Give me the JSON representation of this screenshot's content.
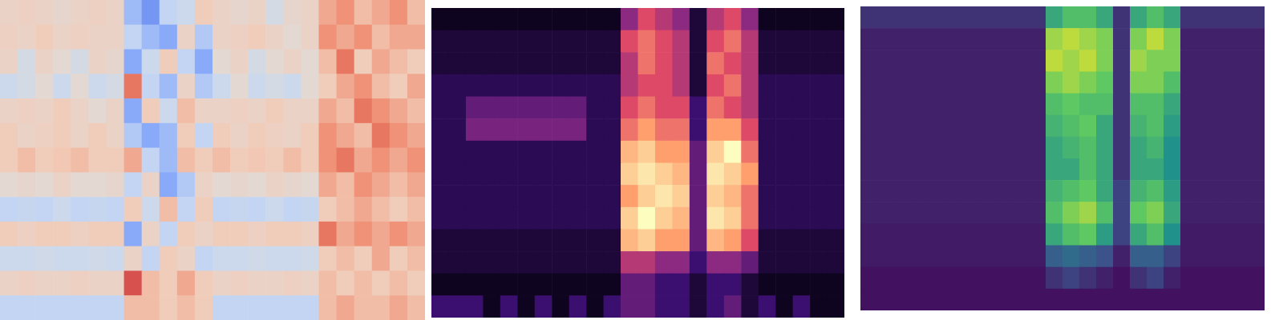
{
  "chart_data": [
    {
      "type": "heatmap",
      "color": "coolwarm",
      "tick_labels": false,
      "zlim": [
        -1,
        1
      ],
      "cells": [
        [
          0.2,
          0.25,
          0.2,
          0.15,
          0.2,
          0.25,
          0.2,
          -0.5,
          -0.7,
          -0.3,
          -0.2,
          0.3,
          0.2,
          0.15,
          0.2,
          -0.1,
          0.15,
          0.2,
          0.5,
          0.6,
          0.4,
          0.5,
          0.6,
          0.4
        ],
        [
          0.25,
          0.2,
          0.3,
          0.2,
          0.25,
          0.2,
          0.2,
          -0.3,
          -0.5,
          -0.6,
          0.2,
          -0.4,
          0.2,
          0.25,
          0.3,
          0.2,
          0.1,
          0.2,
          0.6,
          0.5,
          0.6,
          0.4,
          0.5,
          0.5
        ],
        [
          0.2,
          -0.1,
          0.2,
          0.1,
          -0.1,
          0.2,
          0.15,
          -0.6,
          -0.2,
          0.3,
          -0.3,
          -0.6,
          0.1,
          0.2,
          -0.1,
          0.1,
          0.2,
          0.1,
          0.4,
          0.7,
          0.3,
          0.5,
          0.4,
          0.3
        ],
        [
          -0.2,
          -0.1,
          0.1,
          -0.2,
          0.1,
          -0.2,
          -0.1,
          0.7,
          -0.3,
          -0.5,
          0.2,
          -0.4,
          -0.2,
          0.1,
          -0.2,
          -0.1,
          -0.2,
          0.1,
          0.3,
          0.5,
          0.6,
          0.4,
          0.3,
          0.5
        ],
        [
          0.2,
          0.25,
          0.2,
          0.3,
          0.2,
          0.1,
          0.2,
          -0.6,
          0.3,
          -0.2,
          0.4,
          0.2,
          0.2,
          0.25,
          0.2,
          0.3,
          0.2,
          0.2,
          0.5,
          0.4,
          0.7,
          0.6,
          0.5,
          0.4
        ],
        [
          0.3,
          0.2,
          0.25,
          0.3,
          0.2,
          0.3,
          0.2,
          -0.4,
          -0.6,
          -0.5,
          0.3,
          -0.3,
          0.3,
          0.2,
          0.3,
          0.25,
          0.2,
          0.3,
          0.6,
          0.5,
          0.4,
          0.7,
          0.6,
          0.5
        ],
        [
          0.3,
          0.4,
          0.3,
          0.35,
          0.4,
          0.3,
          0.3,
          0.5,
          -0.3,
          -0.5,
          0.4,
          0.3,
          0.4,
          0.3,
          0.35,
          0.3,
          0.4,
          0.3,
          0.6,
          0.7,
          0.5,
          0.6,
          0.5,
          0.6
        ],
        [
          0.1,
          0.15,
          0.1,
          0.2,
          0.1,
          0.1,
          0.15,
          -0.3,
          0.2,
          -0.6,
          -0.4,
          0.2,
          0.1,
          0.15,
          0.1,
          0.2,
          0.15,
          0.1,
          0.5,
          0.4,
          0.6,
          0.5,
          0.4,
          0.5
        ],
        [
          -0.3,
          -0.25,
          -0.3,
          -0.2,
          -0.3,
          -0.25,
          -0.3,
          0.3,
          -0.2,
          0.4,
          -0.3,
          0.3,
          -0.3,
          -0.25,
          -0.3,
          -0.2,
          -0.3,
          -0.25,
          0.3,
          0.4,
          0.5,
          0.4,
          0.3,
          0.4
        ],
        [
          0.3,
          0.25,
          0.3,
          0.3,
          0.25,
          0.3,
          0.3,
          -0.6,
          0.2,
          -0.3,
          0.3,
          0.2,
          0.3,
          0.3,
          0.25,
          0.3,
          0.3,
          0.25,
          0.7,
          0.5,
          0.6,
          0.5,
          0.6,
          0.5
        ],
        [
          -0.2,
          -0.2,
          -0.15,
          -0.2,
          -0.2,
          -0.15,
          -0.2,
          0.2,
          -0.3,
          0.3,
          0.2,
          -0.3,
          -0.2,
          -0.2,
          -0.15,
          -0.2,
          -0.2,
          -0.15,
          0.3,
          0.4,
          0.3,
          0.5,
          0.3,
          0.4
        ],
        [
          0.2,
          0.25,
          0.2,
          0.2,
          0.25,
          0.2,
          0.2,
          0.8,
          0.4,
          0.3,
          0.5,
          0.3,
          0.2,
          0.25,
          0.2,
          0.2,
          0.25,
          0.2,
          0.4,
          0.3,
          0.4,
          0.3,
          0.4,
          0.3
        ],
        [
          -0.3,
          -0.3,
          -0.3,
          -0.3,
          -0.3,
          -0.3,
          -0.3,
          0.4,
          0.4,
          0.3,
          0.4,
          0.3,
          -0.3,
          -0.3,
          -0.3,
          -0.3,
          -0.3,
          -0.3,
          0.4,
          0.5,
          0.4,
          0.4,
          0.5,
          0.4
        ]
      ]
    },
    {
      "type": "heatmap",
      "color": "magma",
      "tick_labels": false,
      "zlim": [
        0,
        1
      ],
      "cells": [
        [
          0.05,
          0.05,
          0.05,
          0.05,
          0.05,
          0.05,
          0.05,
          0.05,
          0.05,
          0.05,
          0.05,
          0.4,
          0.6,
          0.5,
          0.4,
          0.1,
          0.5,
          0.6,
          0.4,
          0.05,
          0.05,
          0.05,
          0.05,
          0.05
        ],
        [
          0.1,
          0.1,
          0.1,
          0.1,
          0.1,
          0.1,
          0.1,
          0.1,
          0.1,
          0.1,
          0.1,
          0.6,
          0.7,
          0.6,
          0.5,
          0.1,
          0.6,
          0.7,
          0.5,
          0.1,
          0.1,
          0.1,
          0.1,
          0.1
        ],
        [
          0.1,
          0.1,
          0.1,
          0.1,
          0.1,
          0.1,
          0.1,
          0.1,
          0.1,
          0.1,
          0.1,
          0.5,
          0.7,
          0.6,
          0.5,
          0.1,
          0.7,
          0.6,
          0.5,
          0.1,
          0.1,
          0.1,
          0.1,
          0.1
        ],
        [
          0.15,
          0.15,
          0.15,
          0.15,
          0.15,
          0.15,
          0.15,
          0.15,
          0.15,
          0.15,
          0.15,
          0.5,
          0.6,
          0.6,
          0.5,
          0.1,
          0.6,
          0.7,
          0.5,
          0.15,
          0.15,
          0.15,
          0.15,
          0.15
        ],
        [
          0.15,
          0.15,
          0.3,
          0.3,
          0.3,
          0.3,
          0.3,
          0.3,
          0.3,
          0.15,
          0.15,
          0.6,
          0.7,
          0.6,
          0.6,
          0.2,
          0.7,
          0.6,
          0.5,
          0.15,
          0.15,
          0.15,
          0.15,
          0.15
        ],
        [
          0.15,
          0.15,
          0.35,
          0.35,
          0.35,
          0.35,
          0.35,
          0.35,
          0.35,
          0.15,
          0.15,
          0.7,
          0.8,
          0.7,
          0.7,
          0.2,
          0.8,
          0.8,
          0.6,
          0.15,
          0.15,
          0.15,
          0.15,
          0.15
        ],
        [
          0.15,
          0.15,
          0.15,
          0.15,
          0.15,
          0.15,
          0.15,
          0.15,
          0.15,
          0.15,
          0.15,
          0.85,
          0.9,
          0.8,
          0.8,
          0.3,
          0.9,
          1.0,
          0.7,
          0.15,
          0.15,
          0.15,
          0.15,
          0.15
        ],
        [
          0.15,
          0.15,
          0.15,
          0.15,
          0.15,
          0.15,
          0.15,
          0.15,
          0.15,
          0.15,
          0.15,
          0.9,
          0.95,
          0.9,
          0.85,
          0.3,
          0.95,
          0.9,
          0.8,
          0.15,
          0.15,
          0.15,
          0.15,
          0.15
        ],
        [
          0.15,
          0.15,
          0.15,
          0.15,
          0.15,
          0.15,
          0.15,
          0.15,
          0.15,
          0.15,
          0.15,
          0.8,
          0.9,
          0.95,
          0.9,
          0.3,
          0.9,
          0.85,
          0.7,
          0.15,
          0.15,
          0.15,
          0.15,
          0.15
        ],
        [
          0.15,
          0.15,
          0.15,
          0.15,
          0.15,
          0.15,
          0.15,
          0.15,
          0.15,
          0.15,
          0.15,
          0.9,
          1.0,
          0.9,
          0.85,
          0.3,
          0.95,
          0.9,
          0.7,
          0.15,
          0.15,
          0.15,
          0.15,
          0.15
        ],
        [
          0.1,
          0.1,
          0.1,
          0.1,
          0.1,
          0.1,
          0.1,
          0.1,
          0.1,
          0.1,
          0.1,
          0.85,
          0.9,
          0.8,
          0.8,
          0.3,
          0.85,
          0.8,
          0.6,
          0.1,
          0.1,
          0.1,
          0.1,
          0.1
        ],
        [
          0.1,
          0.1,
          0.1,
          0.1,
          0.1,
          0.1,
          0.1,
          0.1,
          0.1,
          0.1,
          0.1,
          0.5,
          0.5,
          0.4,
          0.4,
          0.2,
          0.4,
          0.4,
          0.3,
          0.1,
          0.1,
          0.1,
          0.1,
          0.1
        ],
        [
          0.05,
          0.05,
          0.05,
          0.05,
          0.05,
          0.05,
          0.05,
          0.05,
          0.05,
          0.05,
          0.05,
          0.3,
          0.3,
          0.2,
          0.2,
          0.1,
          0.2,
          0.2,
          0.1,
          0.05,
          0.05,
          0.05,
          0.05,
          0.05
        ],
        [
          0.2,
          0.2,
          0.2,
          0.05,
          0.2,
          0.05,
          0.2,
          0.05,
          0.2,
          0.05,
          0.2,
          0.3,
          0.3,
          0.2,
          0.2,
          0.1,
          0.2,
          0.3,
          0.1,
          0.2,
          0.05,
          0.2,
          0.05,
          0.05
        ]
      ]
    },
    {
      "type": "heatmap",
      "color": "viridis",
      "tick_labels": false,
      "zlim": [
        0,
        1
      ],
      "cells": [
        [
          0.15,
          0.15,
          0.15,
          0.15,
          0.15,
          0.15,
          0.15,
          0.15,
          0.15,
          0.15,
          0.15,
          0.6,
          0.7,
          0.7,
          0.6,
          0.15,
          0.6,
          0.7,
          0.6,
          0.15,
          0.15,
          0.15,
          0.15,
          0.15
        ],
        [
          0.1,
          0.1,
          0.1,
          0.1,
          0.1,
          0.1,
          0.1,
          0.1,
          0.1,
          0.1,
          0.1,
          0.85,
          0.9,
          0.85,
          0.8,
          0.15,
          0.8,
          0.9,
          0.8,
          0.1,
          0.1,
          0.1,
          0.1,
          0.1
        ],
        [
          0.1,
          0.1,
          0.1,
          0.1,
          0.1,
          0.1,
          0.1,
          0.1,
          0.1,
          0.1,
          0.1,
          0.9,
          0.85,
          0.9,
          0.8,
          0.15,
          0.85,
          0.8,
          0.8,
          0.1,
          0.1,
          0.1,
          0.1,
          0.1
        ],
        [
          0.1,
          0.1,
          0.1,
          0.1,
          0.1,
          0.1,
          0.1,
          0.1,
          0.1,
          0.1,
          0.1,
          0.8,
          0.85,
          0.8,
          0.75,
          0.15,
          0.8,
          0.8,
          0.7,
          0.1,
          0.1,
          0.1,
          0.1,
          0.1
        ],
        [
          0.1,
          0.1,
          0.1,
          0.1,
          0.1,
          0.1,
          0.1,
          0.1,
          0.1,
          0.1,
          0.1,
          0.7,
          0.75,
          0.7,
          0.7,
          0.15,
          0.7,
          0.7,
          0.6,
          0.1,
          0.1,
          0.1,
          0.1,
          0.1
        ],
        [
          0.1,
          0.1,
          0.1,
          0.1,
          0.1,
          0.1,
          0.1,
          0.1,
          0.1,
          0.1,
          0.1,
          0.65,
          0.7,
          0.75,
          0.6,
          0.15,
          0.65,
          0.7,
          0.55,
          0.1,
          0.1,
          0.1,
          0.1,
          0.1
        ],
        [
          0.1,
          0.1,
          0.1,
          0.1,
          0.1,
          0.1,
          0.1,
          0.1,
          0.1,
          0.1,
          0.1,
          0.6,
          0.65,
          0.7,
          0.6,
          0.15,
          0.6,
          0.65,
          0.5,
          0.1,
          0.1,
          0.1,
          0.1,
          0.1
        ],
        [
          0.1,
          0.1,
          0.1,
          0.1,
          0.1,
          0.1,
          0.1,
          0.1,
          0.1,
          0.1,
          0.1,
          0.6,
          0.6,
          0.7,
          0.6,
          0.15,
          0.6,
          0.6,
          0.5,
          0.1,
          0.1,
          0.1,
          0.1,
          0.1
        ],
        [
          0.1,
          0.1,
          0.1,
          0.1,
          0.1,
          0.1,
          0.1,
          0.1,
          0.1,
          0.1,
          0.1,
          0.65,
          0.7,
          0.75,
          0.6,
          0.2,
          0.65,
          0.7,
          0.55,
          0.1,
          0.1,
          0.1,
          0.1,
          0.1
        ],
        [
          0.1,
          0.1,
          0.1,
          0.1,
          0.1,
          0.1,
          0.1,
          0.1,
          0.1,
          0.1,
          0.1,
          0.7,
          0.8,
          0.85,
          0.7,
          0.2,
          0.75,
          0.8,
          0.6,
          0.1,
          0.1,
          0.1,
          0.1,
          0.1
        ],
        [
          0.08,
          0.08,
          0.08,
          0.08,
          0.08,
          0.08,
          0.08,
          0.08,
          0.08,
          0.08,
          0.08,
          0.6,
          0.7,
          0.75,
          0.55,
          0.2,
          0.6,
          0.7,
          0.5,
          0.08,
          0.08,
          0.08,
          0.08,
          0.08
        ],
        [
          0.08,
          0.08,
          0.08,
          0.08,
          0.08,
          0.08,
          0.08,
          0.08,
          0.08,
          0.08,
          0.08,
          0.3,
          0.35,
          0.3,
          0.25,
          0.1,
          0.3,
          0.3,
          0.2,
          0.08,
          0.08,
          0.08,
          0.08,
          0.08
        ],
        [
          0.05,
          0.05,
          0.05,
          0.05,
          0.05,
          0.05,
          0.05,
          0.05,
          0.05,
          0.05,
          0.05,
          0.15,
          0.2,
          0.15,
          0.1,
          0.05,
          0.15,
          0.2,
          0.1,
          0.05,
          0.05,
          0.05,
          0.05,
          0.05
        ],
        [
          0.05,
          0.05,
          0.05,
          0.05,
          0.05,
          0.05,
          0.05,
          0.05,
          0.05,
          0.05,
          0.05,
          0.05,
          0.05,
          0.05,
          0.05,
          0.05,
          0.05,
          0.05,
          0.05,
          0.05,
          0.05,
          0.05,
          0.05,
          0.05
        ]
      ]
    }
  ]
}
